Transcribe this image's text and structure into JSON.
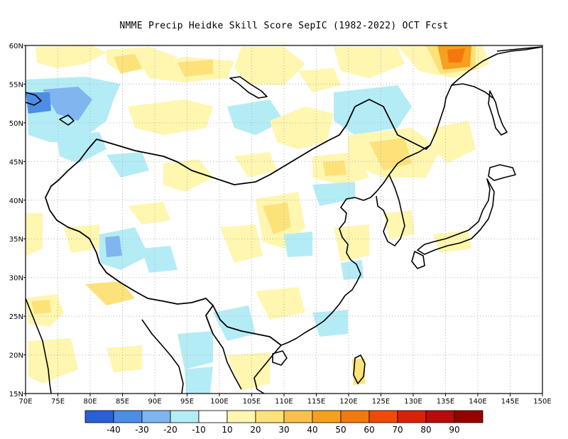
{
  "title": "NMME Precip Heidke Skill Score SepIC (1982-2022) OCT Fcst",
  "map": {
    "lon_range": [
      70,
      150
    ],
    "lat_range": [
      15,
      60
    ],
    "gridlines": "dotted",
    "lon_ticks": [
      "70E",
      "75E",
      "80E",
      "85E",
      "90E",
      "95E",
      "100E",
      "105E",
      "110E",
      "115E",
      "120E",
      "125E",
      "130E",
      "135E",
      "140E",
      "145E",
      "150E"
    ],
    "lat_ticks": [
      "60N",
      "55N",
      "50N",
      "45N",
      "40N",
      "35N",
      "30N",
      "25N",
      "20N",
      "15N"
    ]
  },
  "colorbar": {
    "colors": [
      "#2a5fd8",
      "#4c8ee6",
      "#7fb6f0",
      "#b4ecf6",
      "#ffffff",
      "#fff6b0",
      "#fde27a",
      "#fbc04a",
      "#f89f1c",
      "#f5780c",
      "#f04a08",
      "#d8220a",
      "#b80c0c",
      "#960000"
    ],
    "labels": [
      "-40",
      "-30",
      "-20",
      "-10",
      "10",
      "20",
      "30",
      "40",
      "50",
      "60",
      "70",
      "80",
      "90"
    ]
  },
  "features": {
    "coastline_color": "#000000",
    "border_color": "#000000"
  }
}
